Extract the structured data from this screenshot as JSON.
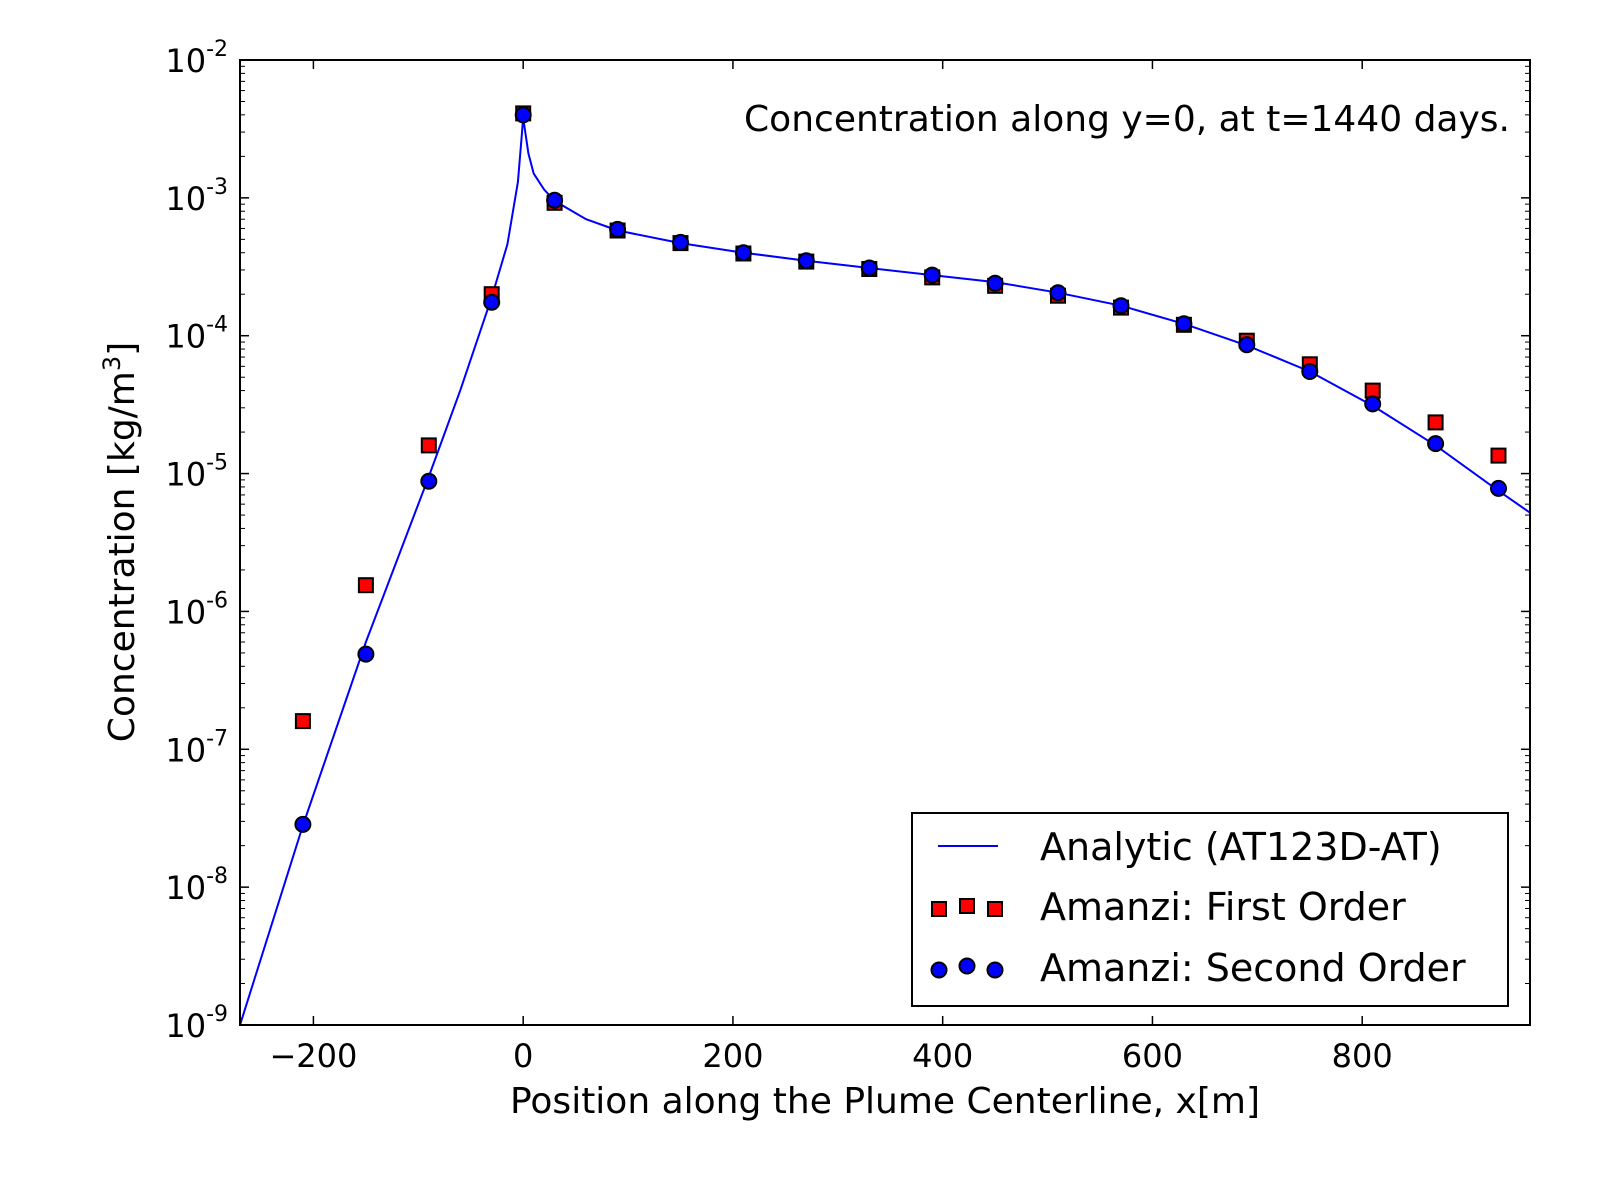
{
  "chart_data": {
    "type": "line",
    "annotation": "Concentration along y=0, at t=1440 days.",
    "xlabel": "Position along the Plume Centerline, x[m]",
    "ylabel_prefix": "Concentration [kg/m",
    "ylabel_sup": "3",
    "ylabel_suffix": "]",
    "xlim": [
      -270,
      960
    ],
    "ylim": [
      1e-09,
      0.01
    ],
    "yscale": "log",
    "x_ticks": [
      -200,
      0,
      200,
      400,
      600,
      800
    ],
    "x_tick_labels": [
      "−200",
      "0",
      "200",
      "400",
      "600",
      "800"
    ],
    "y_ticks": [
      1e-09,
      1e-08,
      1e-07,
      1e-06,
      1e-05,
      0.0001,
      0.001,
      0.01
    ],
    "y_tick_labels": [
      {
        "base": "10",
        "exp": "-9"
      },
      {
        "base": "10",
        "exp": "-8"
      },
      {
        "base": "10",
        "exp": "-7"
      },
      {
        "base": "10",
        "exp": "-6"
      },
      {
        "base": "10",
        "exp": "-5"
      },
      {
        "base": "10",
        "exp": "-4"
      },
      {
        "base": "10",
        "exp": "-3"
      },
      {
        "base": "10",
        "exp": "-2"
      }
    ],
    "grid": false,
    "legend_position": "lower-right",
    "series": [
      {
        "name": "Analytic (AT123D-AT)",
        "kind": "line",
        "color": "#0000ff",
        "x": [
          -270,
          -210,
          -150,
          -90,
          -60,
          -30,
          -15,
          -5,
          0,
          5,
          10,
          20,
          30,
          60,
          90,
          150,
          210,
          270,
          330,
          390,
          450,
          510,
          570,
          630,
          690,
          750,
          810,
          870,
          930,
          960
        ],
        "y": [
          1e-09,
          2.8e-08,
          6e-07,
          9.5e-06,
          4e-05,
          0.00019,
          0.00046,
          0.0013,
          0.0038,
          0.0021,
          0.0015,
          0.00115,
          0.00095,
          0.0007,
          0.00058,
          0.00047,
          0.0004,
          0.00035,
          0.00031,
          0.000275,
          0.000245,
          0.000205,
          0.000165,
          0.000122,
          8.5e-05,
          5.5e-05,
          3.1e-05,
          1.6e-05,
          7.5e-06,
          5.2e-06
        ]
      },
      {
        "name": "Amanzi: First Order",
        "kind": "marker",
        "marker": "square",
        "color": "#ff0000",
        "x": [
          -210,
          -150,
          -90,
          -30,
          0,
          30,
          90,
          150,
          210,
          270,
          330,
          390,
          450,
          510,
          570,
          630,
          690,
          750,
          810,
          870,
          930
        ],
        "y": [
          1.6e-07,
          1.55e-06,
          1.6e-05,
          0.0002,
          0.0041,
          0.00092,
          0.00058,
          0.00047,
          0.000395,
          0.000345,
          0.000305,
          0.000265,
          0.00023,
          0.000195,
          0.00016,
          0.00012,
          9.2e-05,
          6.2e-05,
          4e-05,
          2.35e-05,
          1.35e-05
        ]
      },
      {
        "name": "Amanzi: Second Order",
        "kind": "marker",
        "marker": "circle",
        "color": "#0000ff",
        "x": [
          -210,
          -150,
          -90,
          -30,
          0,
          30,
          90,
          150,
          210,
          270,
          330,
          390,
          450,
          510,
          570,
          630,
          690,
          750,
          810,
          870,
          930
        ],
        "y": [
          2.85e-08,
          4.9e-07,
          8.8e-06,
          0.000175,
          0.004,
          0.00096,
          0.00059,
          0.000475,
          0.0004,
          0.00035,
          0.00031,
          0.000275,
          0.00024,
          0.000205,
          0.000165,
          0.000122,
          8.6e-05,
          5.5e-05,
          3.2e-05,
          1.65e-05,
          7.8e-06
        ]
      }
    ]
  }
}
